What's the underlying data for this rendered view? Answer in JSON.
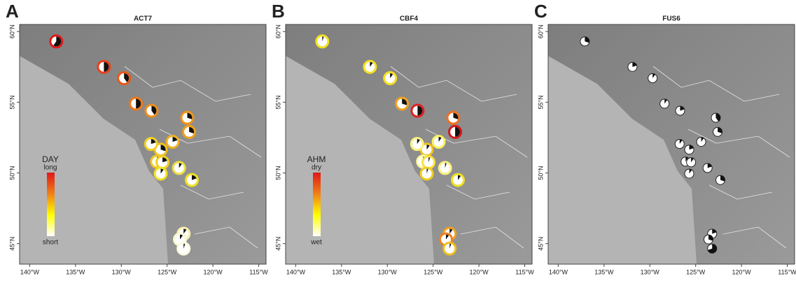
{
  "figure": {
    "xlim": [
      -141.1,
      -114.2
    ],
    "ylim": [
      43.55,
      60.5
    ],
    "xticks": [
      {
        "value": -140,
        "label": "140°W"
      },
      {
        "value": -135,
        "label": "135°W"
      },
      {
        "value": -130,
        "label": "130°W"
      },
      {
        "value": -125,
        "label": "125°W"
      },
      {
        "value": -120,
        "label": "120°W"
      },
      {
        "value": -115,
        "label": "115°W"
      }
    ],
    "yticks": [
      {
        "value": 45,
        "label": "45°N"
      },
      {
        "value": 50,
        "label": "50°N"
      },
      {
        "value": 55,
        "label": "55°N"
      },
      {
        "value": 60,
        "label": "60°N"
      }
    ],
    "sites": [
      {
        "lon": -137.1,
        "lat": 59.3
      },
      {
        "lon": -131.9,
        "lat": 57.5
      },
      {
        "lon": -129.7,
        "lat": 56.7
      },
      {
        "lon": -128.4,
        "lat": 54.9
      },
      {
        "lon": -126.7,
        "lat": 54.4
      },
      {
        "lon": -122.8,
        "lat": 53.9
      },
      {
        "lon": -122.6,
        "lat": 52.9
      },
      {
        "lon": -124.4,
        "lat": 52.2
      },
      {
        "lon": -125.7,
        "lat": 51.65
      },
      {
        "lon": -126.1,
        "lat": 50.8
      },
      {
        "lon": -125.5,
        "lat": 50.75
      },
      {
        "lon": -125.7,
        "lat": 49.95
      },
      {
        "lon": -123.7,
        "lat": 50.35
      },
      {
        "lon": -122.3,
        "lat": 49.5
      },
      {
        "lon": -123.2,
        "lat": 45.7
      },
      {
        "lon": -123.6,
        "lat": 45.3
      },
      {
        "lon": -123.2,
        "lat": 44.65
      },
      {
        "lon": -126.75,
        "lat": 52.05
      }
    ]
  },
  "panels": [
    {
      "letter": "A",
      "title": "ACT7",
      "ring_colors": [
        "#e01818",
        "#e84018",
        "#e85818",
        "#f07818",
        "#f08c18",
        "#f09418",
        "#f0a018",
        "#f0b020",
        "#f0c020",
        "#f0c820",
        "#f0d020",
        "#f0e020",
        "#f0e040",
        "#f0e020",
        "#f8f0b0",
        "#f8f8d0",
        "#fafae0",
        "#f0d020"
      ],
      "dark": [
        0.6,
        0.5,
        0.4,
        0.5,
        0.4,
        0.3,
        0.3,
        0.2,
        0.3,
        0.1,
        0.2,
        0.1,
        0.1,
        0.2,
        0.1,
        0.1,
        0.05,
        0.2
      ],
      "legend": {
        "title": "DAY",
        "high": "long",
        "low": "short",
        "colors": [
          "#e01818",
          "#f08018",
          "#ffff00",
          "#ffffff"
        ]
      }
    },
    {
      "letter": "B",
      "title": "CBF4",
      "ring_colors": [
        "#f2e020",
        "#f2e020",
        "#f2e020",
        "#f0a020",
        "#e02020",
        "#f07020",
        "#d01818",
        "#f8f060",
        "#f0c020",
        "#fafaa0",
        "#f8e040",
        "#f0d020",
        "#f8f080",
        "#f0e020",
        "#f0a020",
        "#f08020",
        "#f0c020",
        "#f8f080"
      ],
      "dark": [
        0.05,
        0.1,
        0.1,
        0.3,
        0.5,
        0.3,
        0.5,
        0.1,
        0.1,
        0.05,
        0.05,
        0.05,
        0.05,
        0.1,
        0.1,
        0.1,
        0.05,
        0.1
      ],
      "legend": {
        "title": "AHM",
        "high": "dry",
        "low": "wet",
        "colors": [
          "#e01818",
          "#f08018",
          "#ffff00",
          "#ffffff"
        ]
      }
    },
    {
      "letter": "C",
      "title": "FUS6",
      "dark": [
        0.3,
        0.2,
        0.1,
        0.1,
        0.2,
        0.4,
        0.3,
        0.1,
        0.2,
        0.1,
        0.1,
        0.1,
        0.2,
        0.3,
        0.2,
        0.3,
        0.7,
        0.1
      ]
    }
  ]
}
